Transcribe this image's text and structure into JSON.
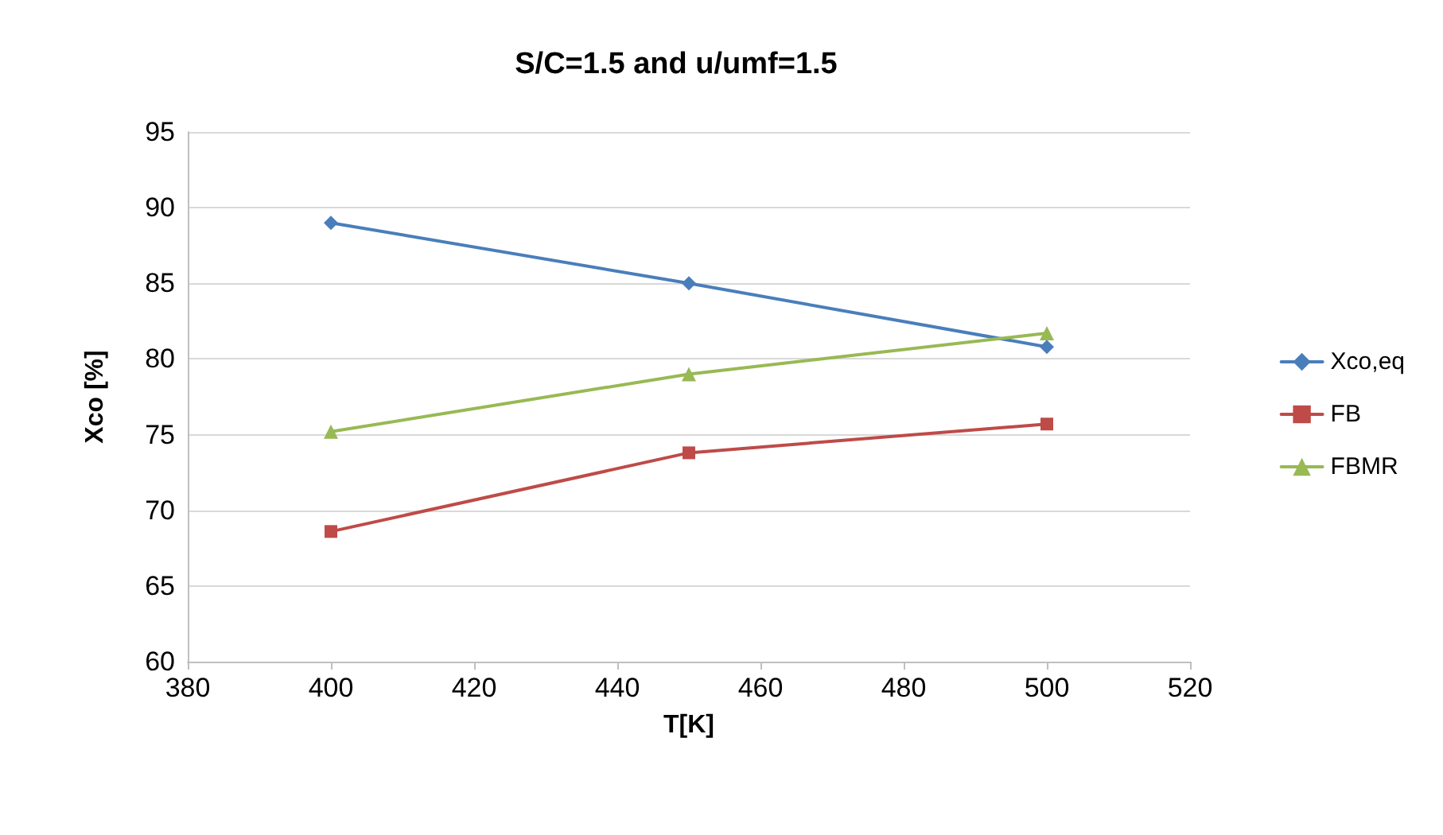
{
  "chart_data": {
    "type": "line",
    "title": "S/C=1.5 and u/umf=1.5",
    "xlabel": "T[K]",
    "ylabel": "Xco [%]",
    "x": [
      400,
      450,
      500
    ],
    "series": [
      {
        "name": "Xco,eq",
        "color": "#4a7ebb",
        "marker": "diamond",
        "values": [
          89.0,
          85.0,
          80.8
        ]
      },
      {
        "name": "FB",
        "color": "#be4b48",
        "marker": "square",
        "values": [
          68.6,
          73.8,
          75.7
        ]
      },
      {
        "name": "FBMR",
        "color": "#98b954",
        "marker": "triangle",
        "values": [
          75.2,
          79.0,
          81.7
        ]
      }
    ],
    "xlim": [
      380,
      520
    ],
    "xticks": [
      380,
      400,
      420,
      440,
      460,
      480,
      500,
      520
    ],
    "ylim": [
      60,
      95
    ],
    "yticks": [
      60,
      65,
      70,
      75,
      80,
      85,
      90,
      95
    ],
    "grid": "y",
    "legend": "right",
    "line_style": "solid"
  }
}
